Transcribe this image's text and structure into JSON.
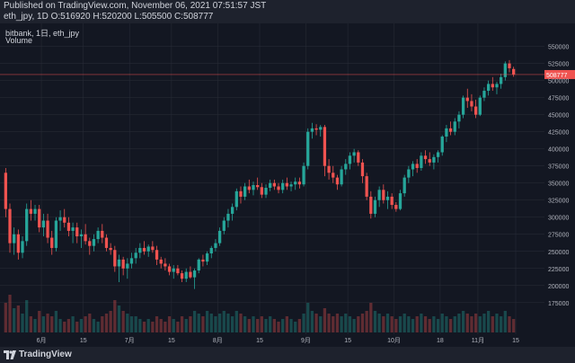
{
  "header": {
    "published_line": "Published on TradingView.com, November 06, 2021 07:51:57 JST",
    "ohlc_line": "eth_jpy, 1D O:516920 H:520200 L:505500 C:508777"
  },
  "legend": {
    "symbol_line": "bitbank, 1日, eth_jpy",
    "volume_label": "Volume"
  },
  "footer": {
    "brand": "TradingView",
    "logo_icon": "tradingview-logo-icon"
  },
  "colors": {
    "up": "#26a69a",
    "down": "#ef5350",
    "background": "#131722",
    "grid": "#2a2e39",
    "text": "#b2b5be"
  },
  "chart_data": {
    "type": "candlestick",
    "y_ticks": [
      "550000",
      "525000",
      "500000",
      "475000",
      "450000",
      "425000",
      "400000",
      "375000",
      "350000",
      "325000",
      "300000",
      "275000",
      "250000",
      "225000",
      "200000",
      "175000"
    ],
    "x_ticks": [
      "6月",
      "15",
      "7月",
      "15",
      "8月",
      "15",
      "9月",
      "15",
      "10月",
      "18",
      "11月",
      "15"
    ],
    "ylim": [
      155000,
      560000
    ],
    "last_price": "508777",
    "candles": [
      [
        365000,
        372000,
        300000,
        312000
      ],
      [
        312000,
        320000,
        248000,
        262000
      ],
      [
        262000,
        285000,
        245000,
        275000
      ],
      [
        275000,
        282000,
        238000,
        248000
      ],
      [
        248000,
        272000,
        240000,
        265000
      ],
      [
        265000,
        320000,
        258000,
        312000
      ],
      [
        312000,
        325000,
        295000,
        305000
      ],
      [
        305000,
        318000,
        295000,
        312000
      ],
      [
        312000,
        318000,
        278000,
        285000
      ],
      [
        285000,
        305000,
        272000,
        295000
      ],
      [
        295000,
        305000,
        262000,
        270000
      ],
      [
        270000,
        280000,
        245000,
        255000
      ],
      [
        255000,
        300000,
        250000,
        295000
      ],
      [
        295000,
        310000,
        280000,
        300000
      ],
      [
        300000,
        312000,
        285000,
        292000
      ],
      [
        292000,
        300000,
        272000,
        280000
      ],
      [
        280000,
        292000,
        262000,
        285000
      ],
      [
        285000,
        292000,
        262000,
        272000
      ],
      [
        272000,
        282000,
        255000,
        275000
      ],
      [
        275000,
        290000,
        260000,
        265000
      ],
      [
        265000,
        270000,
        245000,
        258000
      ],
      [
        258000,
        275000,
        250000,
        268000
      ],
      [
        268000,
        285000,
        262000,
        280000
      ],
      [
        280000,
        290000,
        262000,
        270000
      ],
      [
        270000,
        275000,
        250000,
        255000
      ],
      [
        255000,
        262000,
        245000,
        252000
      ],
      [
        252000,
        258000,
        220000,
        228000
      ],
      [
        228000,
        245000,
        205000,
        238000
      ],
      [
        238000,
        242000,
        215000,
        225000
      ],
      [
        225000,
        240000,
        210000,
        232000
      ],
      [
        232000,
        248000,
        225000,
        240000
      ],
      [
        240000,
        255000,
        232000,
        248000
      ],
      [
        248000,
        262000,
        240000,
        255000
      ],
      [
        255000,
        265000,
        245000,
        250000
      ],
      [
        250000,
        260000,
        242000,
        257000
      ],
      [
        257000,
        265000,
        248000,
        252000
      ],
      [
        252000,
        258000,
        230000,
        238000
      ],
      [
        238000,
        242000,
        225000,
        232000
      ],
      [
        232000,
        240000,
        222000,
        228000
      ],
      [
        228000,
        232000,
        215000,
        220000
      ],
      [
        220000,
        230000,
        210000,
        225000
      ],
      [
        225000,
        230000,
        215000,
        218000
      ],
      [
        218000,
        222000,
        205000,
        210000
      ],
      [
        210000,
        225000,
        205000,
        220000
      ],
      [
        220000,
        228000,
        210000,
        212000
      ],
      [
        212000,
        225000,
        195000,
        222000
      ],
      [
        222000,
        240000,
        218000,
        238000
      ],
      [
        238000,
        245000,
        228000,
        235000
      ],
      [
        235000,
        250000,
        230000,
        247000
      ],
      [
        247000,
        258000,
        240000,
        255000
      ],
      [
        255000,
        268000,
        250000,
        262000
      ],
      [
        262000,
        285000,
        258000,
        280000
      ],
      [
        280000,
        300000,
        275000,
        295000
      ],
      [
        295000,
        312000,
        285000,
        305000
      ],
      [
        305000,
        320000,
        295000,
        315000
      ],
      [
        315000,
        342000,
        310000,
        338000
      ],
      [
        338000,
        345000,
        320000,
        330000
      ],
      [
        330000,
        350000,
        325000,
        345000
      ],
      [
        345000,
        355000,
        335000,
        340000
      ],
      [
        340000,
        352000,
        332000,
        347000
      ],
      [
        347000,
        358000,
        340000,
        344000
      ],
      [
        344000,
        350000,
        328000,
        333000
      ],
      [
        333000,
        348000,
        328000,
        343000
      ],
      [
        343000,
        355000,
        338000,
        350000
      ],
      [
        350000,
        355000,
        340000,
        345000
      ],
      [
        345000,
        350000,
        335000,
        340000
      ],
      [
        340000,
        355000,
        335000,
        350000
      ],
      [
        350000,
        358000,
        340000,
        345000
      ],
      [
        345000,
        352000,
        338000,
        348000
      ],
      [
        348000,
        358000,
        340000,
        352000
      ],
      [
        352000,
        358000,
        342000,
        348000
      ],
      [
        348000,
        380000,
        345000,
        375000
      ],
      [
        375000,
        430000,
        370000,
        425000
      ],
      [
        425000,
        438000,
        415000,
        430000
      ],
      [
        430000,
        436000,
        420000,
        428000
      ],
      [
        428000,
        435000,
        418000,
        432000
      ],
      [
        432000,
        435000,
        360000,
        375000
      ],
      [
        375000,
        385000,
        355000,
        365000
      ],
      [
        365000,
        375000,
        350000,
        358000
      ],
      [
        358000,
        362000,
        340000,
        348000
      ],
      [
        348000,
        375000,
        345000,
        370000
      ],
      [
        370000,
        385000,
        362000,
        378000
      ],
      [
        378000,
        395000,
        370000,
        390000
      ],
      [
        390000,
        400000,
        380000,
        395000
      ],
      [
        395000,
        398000,
        375000,
        380000
      ],
      [
        380000,
        385000,
        350000,
        360000
      ],
      [
        360000,
        365000,
        325000,
        330000
      ],
      [
        330000,
        338000,
        298000,
        305000
      ],
      [
        305000,
        330000,
        300000,
        325000
      ],
      [
        325000,
        345000,
        315000,
        340000
      ],
      [
        340000,
        348000,
        320000,
        325000
      ],
      [
        325000,
        338000,
        312000,
        330000
      ],
      [
        330000,
        335000,
        312000,
        318000
      ],
      [
        318000,
        322000,
        308000,
        312000
      ],
      [
        312000,
        340000,
        310000,
        335000
      ],
      [
        335000,
        362000,
        330000,
        358000
      ],
      [
        358000,
        375000,
        350000,
        370000
      ],
      [
        370000,
        382000,
        360000,
        378000
      ],
      [
        378000,
        385000,
        365000,
        372000
      ],
      [
        372000,
        395000,
        368000,
        390000
      ],
      [
        390000,
        398000,
        378000,
        385000
      ],
      [
        385000,
        395000,
        375000,
        380000
      ],
      [
        380000,
        392000,
        370000,
        388000
      ],
      [
        388000,
        398000,
        380000,
        395000
      ],
      [
        395000,
        420000,
        390000,
        418000
      ],
      [
        418000,
        435000,
        410000,
        430000
      ],
      [
        430000,
        440000,
        420000,
        425000
      ],
      [
        425000,
        445000,
        420000,
        440000
      ],
      [
        440000,
        455000,
        430000,
        450000
      ],
      [
        450000,
        478000,
        445000,
        475000
      ],
      [
        475000,
        488000,
        460000,
        470000
      ],
      [
        470000,
        480000,
        455000,
        462000
      ],
      [
        462000,
        472000,
        445000,
        450000
      ],
      [
        450000,
        478000,
        448000,
        475000
      ],
      [
        475000,
        490000,
        470000,
        485000
      ],
      [
        485000,
        500000,
        478000,
        495000
      ],
      [
        495000,
        505000,
        485000,
        490000
      ],
      [
        490000,
        498000,
        480000,
        495000
      ],
      [
        495000,
        510000,
        488000,
        505000
      ],
      [
        505000,
        528000,
        500000,
        525000
      ],
      [
        525000,
        530000,
        512000,
        518000
      ],
      [
        516920,
        520200,
        505500,
        508777
      ]
    ],
    "volumes": [
      0.55,
      0.7,
      0.45,
      0.5,
      0.35,
      0.6,
      0.3,
      0.25,
      0.4,
      0.3,
      0.35,
      0.3,
      0.4,
      0.25,
      0.2,
      0.25,
      0.3,
      0.2,
      0.25,
      0.3,
      0.35,
      0.25,
      0.2,
      0.3,
      0.35,
      0.4,
      0.6,
      0.5,
      0.4,
      0.35,
      0.3,
      0.3,
      0.25,
      0.2,
      0.25,
      0.2,
      0.3,
      0.25,
      0.2,
      0.3,
      0.25,
      0.2,
      0.3,
      0.25,
      0.3,
      0.4,
      0.35,
      0.3,
      0.4,
      0.35,
      0.3,
      0.35,
      0.4,
      0.35,
      0.3,
      0.4,
      0.35,
      0.3,
      0.25,
      0.3,
      0.25,
      0.3,
      0.25,
      0.3,
      0.25,
      0.2,
      0.25,
      0.3,
      0.25,
      0.2,
      0.25,
      0.35,
      0.55,
      0.4,
      0.35,
      0.3,
      0.45,
      0.35,
      0.3,
      0.35,
      0.3,
      0.35,
      0.3,
      0.25,
      0.3,
      0.35,
      0.4,
      0.55,
      0.4,
      0.35,
      0.3,
      0.35,
      0.3,
      0.25,
      0.3,
      0.35,
      0.3,
      0.25,
      0.3,
      0.35,
      0.3,
      0.25,
      0.3,
      0.25,
      0.35,
      0.3,
      0.25,
      0.3,
      0.35,
      0.4,
      0.35,
      0.3,
      0.35,
      0.3,
      0.35,
      0.4,
      0.3,
      0.35,
      0.3,
      0.4,
      0.3,
      0.25
    ]
  }
}
